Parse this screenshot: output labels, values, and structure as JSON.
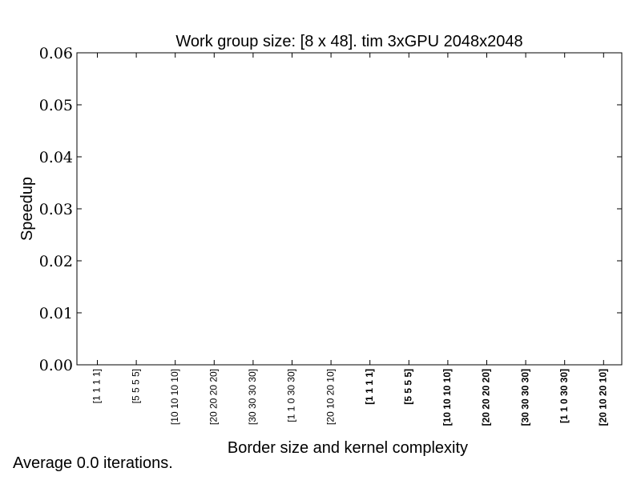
{
  "chart_data": {
    "type": "bar",
    "title": "Work group size: [8 x 48]. tim 3xGPU 2048x2048",
    "xlabel": "Border size and kernel complexity",
    "ylabel": "Speedup",
    "ylim": [
      0,
      0.06
    ],
    "yticks": [
      "0.00",
      "0.01",
      "0.02",
      "0.03",
      "0.04",
      "0.05",
      "0.06"
    ],
    "categories": [
      "[1 1 1 1]",
      "[5 5 5 5]",
      "[10 10 10 10]",
      "[20 20 20 20]",
      "[30 30 30 30]",
      "[1 1 0 30 30]",
      "[20 10 20 10]",
      "[1 1 1 1]",
      "[5 5 5 5]",
      "[10 10 10 10]",
      "[20 20 20 20]",
      "[30 30 30 30]",
      "[1 1 0 30 30]",
      "[20 10 20 10]"
    ],
    "category_bold": [
      false,
      false,
      false,
      false,
      false,
      false,
      false,
      true,
      true,
      true,
      true,
      true,
      true,
      true
    ],
    "values": [
      0,
      0,
      0,
      0,
      0,
      0,
      0,
      0,
      0,
      0,
      0,
      0,
      0,
      0
    ],
    "grid": false,
    "legend": "none"
  },
  "footer": {
    "note": "Average 0.0 iterations."
  }
}
